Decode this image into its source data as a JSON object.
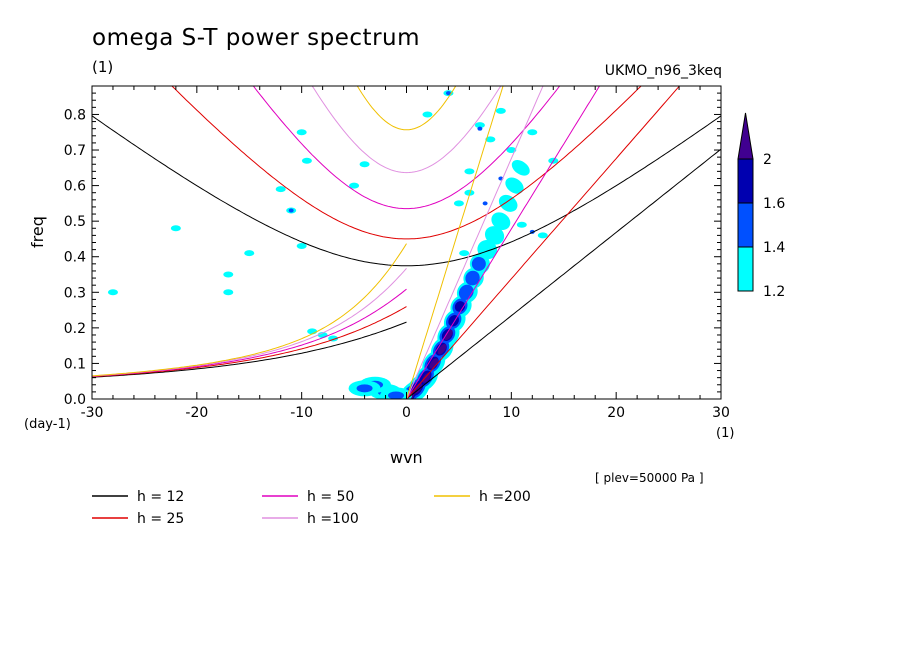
{
  "chart_data": {
    "type": "line",
    "title": "omega S-T power spectrum",
    "title_unit": "(1)",
    "model": "UKMO_n96_3keq",
    "xlabel": "wvn",
    "ylabel": "freq",
    "x_unit": "(1)",
    "y_unit": "(day-1)",
    "annotation": "[ plev=50000 Pa ]",
    "xlim": [
      -30,
      30
    ],
    "ylim": [
      0,
      0.88
    ],
    "x_ticks": [
      "-30",
      "-20",
      "-10",
      "0",
      "10",
      "20",
      "30"
    ],
    "y_ticks": [
      "0.0",
      "0.1",
      "0.2",
      "0.3",
      "0.4",
      "0.5",
      "0.6",
      "0.7",
      "0.8"
    ],
    "grid": false,
    "legend_position": "bottom",
    "series": [
      {
        "name": "h = 12",
        "color": "#000000",
        "h": 12
      },
      {
        "name": "h = 25",
        "color": "#e00000",
        "h": 25
      },
      {
        "name": "h = 50",
        "color": "#e000c0",
        "h": 50
      },
      {
        "name": "h =100",
        "color": "#e090e0",
        "h": 100
      },
      {
        "name": "h =200",
        "color": "#f0c000",
        "h": 200
      }
    ],
    "colorbar": {
      "ticks": [
        "1.2",
        "1.4",
        "1.6",
        "2"
      ],
      "levels": [
        1.2,
        1.4,
        1.6,
        2
      ],
      "colors": [
        "#00ffff",
        "#0050ff",
        "#0000b0",
        "#400090"
      ]
    }
  }
}
